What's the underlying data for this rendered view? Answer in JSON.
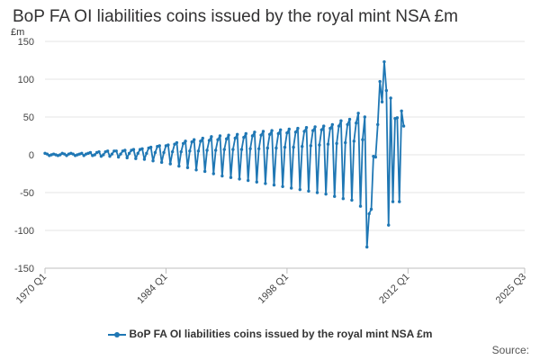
{
  "chart_data": {
    "type": "line",
    "title": "BoP FA OI liabilities coins issued by the royal mint NSA £m",
    "ylabel": "£m",
    "xlabel": "",
    "ylim": [
      -150,
      150
    ],
    "yticks": [
      150,
      100,
      50,
      0,
      -50,
      -100,
      -150
    ],
    "xtick_labels": [
      "1970 Q1",
      "1984 Q1",
      "1998 Q1",
      "2012 Q1",
      "2025 Q3"
    ],
    "xtick_quarter_index": [
      0,
      56,
      112,
      168,
      222
    ],
    "series_color": "#1f77b4",
    "series": [
      {
        "name": "BoP FA OI liabilities coins issued by the royal mint NSA £m",
        "start_quarter": "1970 Q1",
        "values": [
          2,
          1,
          -1,
          0,
          1,
          0,
          -1,
          0,
          2,
          1,
          -1,
          1,
          2,
          1,
          -1,
          0,
          1,
          2,
          -1,
          1,
          2,
          3,
          -1,
          0,
          3,
          4,
          -2,
          0,
          4,
          5,
          -2,
          1,
          5,
          5,
          -3,
          1,
          5,
          6,
          -4,
          2,
          6,
          7,
          -5,
          2,
          7,
          8,
          -6,
          2,
          9,
          10,
          -8,
          3,
          11,
          12,
          -10,
          3,
          12,
          13,
          -12,
          4,
          14,
          16,
          -15,
          4,
          15,
          18,
          -17,
          5,
          17,
          20,
          -20,
          5,
          18,
          22,
          -22,
          6,
          19,
          24,
          -25,
          6,
          20,
          25,
          -28,
          7,
          21,
          26,
          -30,
          7,
          22,
          27,
          -32,
          7,
          23,
          28,
          -34,
          8,
          25,
          30,
          -36,
          8,
          26,
          31,
          -38,
          9,
          27,
          32,
          -40,
          9,
          28,
          33,
          -42,
          10,
          29,
          34,
          -44,
          10,
          30,
          35,
          -46,
          11,
          31,
          36,
          -48,
          12,
          32,
          37,
          -50,
          13,
          33,
          38,
          -52,
          14,
          35,
          40,
          -55,
          15,
          38,
          45,
          -58,
          16,
          40,
          47,
          -60,
          18,
          42,
          55,
          -68,
          20,
          50,
          -122,
          -78,
          -72,
          -2,
          -3,
          40,
          97,
          70,
          123,
          85,
          -93,
          75,
          -62,
          48,
          49,
          -62,
          58,
          38
        ]
      }
    ]
  },
  "legend": {
    "label": "BoP FA OI liabilities coins issued by the royal mint NSA £m"
  },
  "source_label": "Source:"
}
